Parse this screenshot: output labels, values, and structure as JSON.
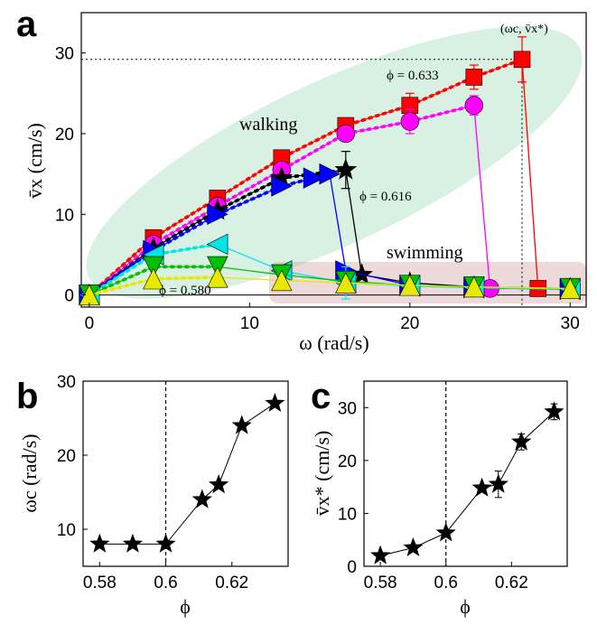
{
  "panels": {
    "a": {
      "letter": "a"
    },
    "b": {
      "letter": "b"
    },
    "c": {
      "letter": "c"
    }
  },
  "chart_data": [
    {
      "panel": "a",
      "type": "line",
      "xlabel": "ω (rad/s)",
      "ylabel": "v̄x (cm/s)",
      "xlim": [
        -0.5,
        31
      ],
      "ylim": [
        -1.5,
        35
      ],
      "xticks": [
        0,
        10,
        20,
        30
      ],
      "yticks": [
        0,
        10,
        20,
        30
      ],
      "grid": false,
      "region_labels": {
        "walking": "walking",
        "swimming": "swimming"
      },
      "annotations": {
        "critical_point": "(ωc, v̄x*)",
        "phi_high": "ϕ = 0.633",
        "phi_mid": "ϕ = 0.616",
        "phi_low": "ϕ = 0.580"
      },
      "critical_x": 27,
      "critical_y": 29.2,
      "series": [
        {
          "color": "#ff0000",
          "marker": "square",
          "x": [
            0,
            4,
            8,
            12,
            16,
            20,
            24,
            27,
            28,
            30
          ],
          "y": [
            0,
            7.1,
            12,
            17,
            21,
            23.5,
            27,
            29.2,
            0.8,
            0.8
          ],
          "err": [
            0,
            0,
            0,
            0,
            0,
            1.5,
            1.5,
            2.8,
            0,
            0
          ],
          "fit_end": 7
        },
        {
          "color": "#ff00ff",
          "marker": "circle",
          "x": [
            0,
            4,
            8,
            12,
            16,
            20,
            24,
            25,
            30
          ],
          "y": [
            0,
            6.3,
            11,
            15.5,
            20,
            21.5,
            23.5,
            0.8,
            0.8
          ],
          "err": [
            0,
            0,
            0,
            0,
            0,
            1.5,
            1.2,
            0,
            0
          ],
          "fit_end": 6
        },
        {
          "color": "#000000",
          "marker": "star",
          "x": [
            0,
            4,
            8,
            12,
            16,
            17,
            20,
            24,
            30
          ],
          "y": [
            0,
            5.8,
            10.5,
            14.5,
            15.5,
            2.5,
            1.5,
            1,
            0.8
          ],
          "err": [
            0,
            0,
            0,
            0,
            2.3,
            0,
            0,
            0,
            0
          ],
          "fit_end": 4
        },
        {
          "color": "#0000ff",
          "marker": "triangle-right",
          "x": [
            0,
            4,
            8,
            12,
            14,
            15,
            16,
            20,
            24,
            30
          ],
          "y": [
            0,
            5.5,
            10,
            13.5,
            14.5,
            15,
            3,
            1.2,
            0.9,
            0.7
          ],
          "err": [
            0,
            0,
            0,
            0,
            0,
            0,
            0,
            0,
            0,
            0
          ],
          "fit_end": 5
        },
        {
          "color": "#00e5e5",
          "marker": "triangle-left",
          "x": [
            0,
            4,
            8,
            12,
            16,
            20,
            24,
            30
          ],
          "y": [
            0,
            5,
            6.3,
            3,
            1.5,
            1.1,
            0.9,
            0.7
          ],
          "err": [
            0,
            0,
            0,
            0,
            2,
            0,
            0,
            0
          ],
          "fit_end": 2
        },
        {
          "color": "#00c000",
          "marker": "triangle-down",
          "x": [
            0,
            4,
            8,
            12,
            16,
            20,
            24,
            30
          ],
          "y": [
            0,
            3.5,
            3.5,
            2.5,
            1.7,
            1.2,
            1,
            0.8
          ],
          "err": [
            0,
            0,
            0,
            0,
            0,
            0,
            0,
            0
          ],
          "fit_end": 2
        },
        {
          "color": "#e8e800",
          "marker": "triangle-up",
          "x": [
            0,
            4,
            8,
            12,
            16,
            20,
            24,
            30
          ],
          "y": [
            0,
            2,
            2.2,
            1.8,
            1.5,
            1.2,
            1,
            0.8
          ],
          "err": [
            0,
            0,
            0,
            0,
            0,
            0,
            0,
            0
          ],
          "fit_end": 2
        }
      ]
    },
    {
      "panel": "b",
      "type": "line",
      "xlabel": "ϕ",
      "ylabel": "ωc (rad/s)",
      "xlim": [
        0.575,
        0.637
      ],
      "ylim": [
        5,
        30
      ],
      "xticks": [
        0.58,
        0.6,
        0.62
      ],
      "yticks": [
        10,
        20,
        30
      ],
      "vline_x": 0.6,
      "marker": "star",
      "x": [
        0.58,
        0.59,
        0.6,
        0.611,
        0.616,
        0.623,
        0.633
      ],
      "y": [
        8,
        8,
        8,
        14,
        16,
        24,
        27
      ]
    },
    {
      "panel": "c",
      "type": "line",
      "xlabel": "ϕ",
      "ylabel": "v̄x* (cm/s)",
      "xlim": [
        0.575,
        0.637
      ],
      "ylim": [
        0,
        35
      ],
      "xticks": [
        0.58,
        0.6,
        0.62
      ],
      "yticks": [
        0,
        10,
        20,
        30
      ],
      "vline_x": 0.6,
      "marker": "star",
      "x": [
        0.58,
        0.59,
        0.6,
        0.611,
        0.616,
        0.623,
        0.633
      ],
      "y": [
        2,
        3.5,
        6.3,
        14.8,
        15.5,
        23.5,
        29.2
      ],
      "err": [
        0,
        0,
        0,
        0,
        2.5,
        1.5,
        1.5
      ]
    }
  ]
}
